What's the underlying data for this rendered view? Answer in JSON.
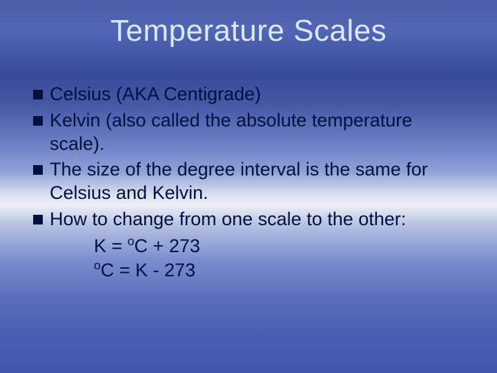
{
  "slide": {
    "title": "Temperature Scales",
    "title_color": "#d9e8f4",
    "title_fontsize": 44,
    "body_color": "#00113f",
    "body_fontsize": 27,
    "bullet_color": "#00113f",
    "bullets": [
      "Celsius (AKA Centigrade)",
      "Kelvin (also called the absolute temperature scale).",
      "The size of the degree interval is the same for Celsius and Kelvin.",
      "How to change from one scale to the other:"
    ],
    "formulas": {
      "line1_pre": "K = ",
      "line1_sup": "o",
      "line1_post": "C  +  273",
      "line2_sup": "o",
      "line2_post": "C = K - 273"
    },
    "background_gradient_stops": [
      "#4a5ba8",
      "#5266b5",
      "#384a9a",
      "#4658a5",
      "#6b7dc5",
      "#8fa0d8",
      "#d8deee",
      "#eef0f6",
      "#b8c3e3",
      "#7a8ccf",
      "#5a6dbb",
      "#4a5fb4",
      "#4256ac"
    ]
  }
}
